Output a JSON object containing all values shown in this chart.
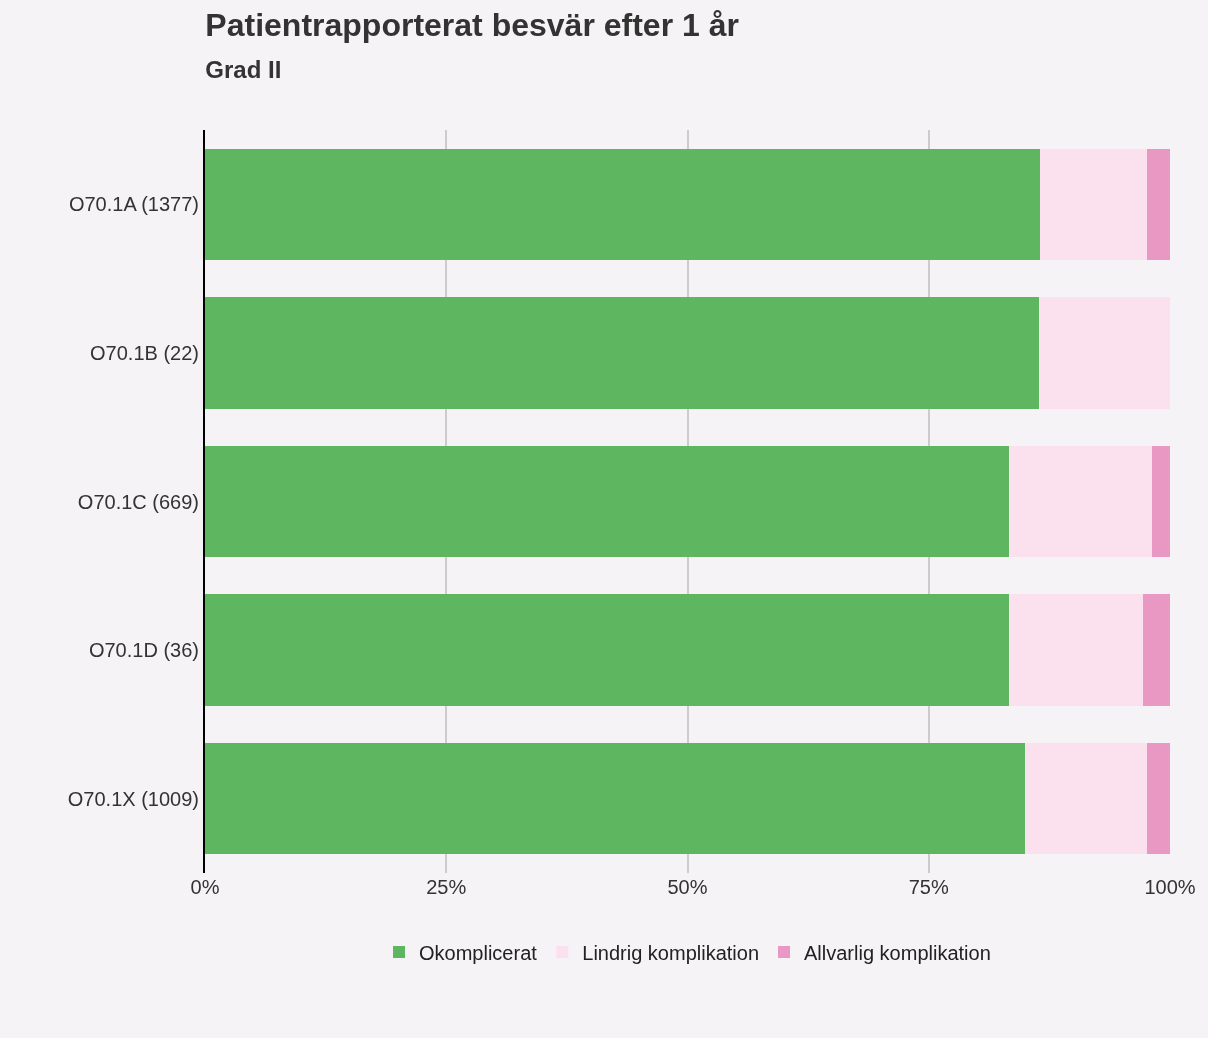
{
  "chart_data": {
    "type": "bar",
    "orientation": "horizontal",
    "stacked": true,
    "title": "Patientrapporterat besvär efter 1 år",
    "subtitle": "Grad II",
    "categories": [
      "O70.1A (1377)",
      "O70.1B (22)",
      "O70.1C (669)",
      "O70.1D (36)",
      "O70.1X (1009)"
    ],
    "series": [
      {
        "name": "Okomplicerat",
        "color": "#5eb760",
        "values": [
          86.5,
          86.4,
          83.3,
          83.3,
          85.0
        ]
      },
      {
        "name": "Lindrig komplikation",
        "color": "#fbe0ee",
        "values": [
          11.1,
          13.6,
          14.8,
          13.9,
          12.6
        ]
      },
      {
        "name": "Allvarlig komplikation",
        "color": "#e898c3",
        "values": [
          2.4,
          0,
          1.9,
          2.8,
          2.4
        ]
      }
    ],
    "xlim": [
      0,
      100
    ],
    "xticks": [
      {
        "value": 0,
        "label": "0%"
      },
      {
        "value": 25,
        "label": "25%"
      },
      {
        "value": 50,
        "label": "50%"
      },
      {
        "value": 75,
        "label": "75%"
      },
      {
        "value": 100,
        "label": "100%"
      }
    ],
    "grid": "x",
    "legend": "bottom"
  }
}
